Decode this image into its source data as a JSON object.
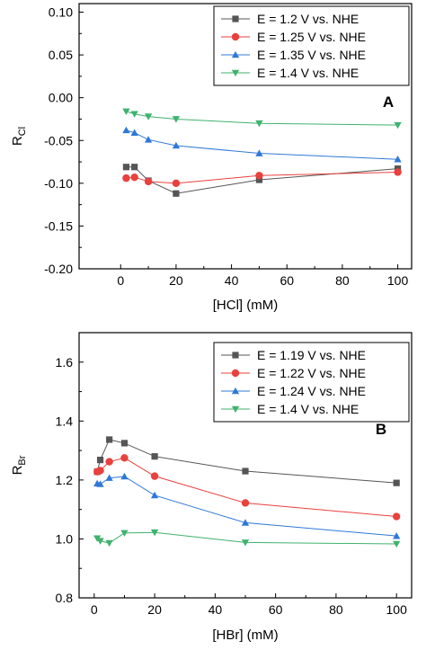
{
  "chart_data": [
    {
      "type": "line",
      "panel_label": "A",
      "xlabel": "[HCl] (mM)",
      "ylabel_main": "R",
      "ylabel_sub": "Cl",
      "xlim": [
        -15,
        105
      ],
      "ylim": [
        -0.2,
        0.11
      ],
      "xticks": [
        0,
        20,
        40,
        60,
        80,
        100
      ],
      "xtick_labels": [
        "0",
        "20",
        "40",
        "60",
        "80",
        "100"
      ],
      "yticks": [
        -0.2,
        -0.15,
        -0.1,
        -0.05,
        0.0,
        0.05,
        0.1
      ],
      "ytick_labels": [
        "-0.20",
        "-0.15",
        "-0.10",
        "-0.05",
        "0.00",
        "0.05",
        "0.10"
      ],
      "legend_position": "top-right",
      "series": [
        {
          "name": "E = 1.2 V vs. NHE",
          "color": "#555555",
          "marker": "square",
          "x": [
            2,
            5,
            10,
            20,
            50,
            100
          ],
          "y": [
            -0.081,
            -0.081,
            -0.097,
            -0.112,
            -0.096,
            -0.083
          ]
        },
        {
          "name": "E = 1.25 V vs. NHE",
          "color": "#e8413e",
          "marker": "circle",
          "x": [
            2,
            5,
            10,
            20,
            50,
            100
          ],
          "y": [
            -0.094,
            -0.093,
            -0.098,
            -0.1,
            -0.091,
            -0.087
          ]
        },
        {
          "name": "E = 1.35 V vs. NHE",
          "color": "#2f78d8",
          "marker": "triangle-up",
          "x": [
            2,
            5,
            10,
            20,
            50,
            100
          ],
          "y": [
            -0.038,
            -0.041,
            -0.049,
            -0.056,
            -0.065,
            -0.072
          ]
        },
        {
          "name": "E = 1.4 V vs. NHE",
          "color": "#3fb26e",
          "marker": "triangle-down",
          "x": [
            2,
            5,
            10,
            20,
            50,
            100
          ],
          "y": [
            -0.016,
            -0.019,
            -0.022,
            -0.025,
            -0.03,
            -0.032
          ]
        }
      ]
    },
    {
      "type": "line",
      "panel_label": "B",
      "xlabel": "[HBr] (mM)",
      "ylabel_main": "R",
      "ylabel_sub": "Br",
      "xlim": [
        -5,
        105
      ],
      "ylim": [
        0.8,
        1.7
      ],
      "xticks": [
        0,
        20,
        40,
        60,
        80,
        100
      ],
      "xtick_labels": [
        "0",
        "20",
        "40",
        "60",
        "80",
        "100"
      ],
      "yticks": [
        0.8,
        1.0,
        1.2,
        1.4,
        1.6
      ],
      "ytick_labels": [
        "0.8",
        "1.0",
        "1.2",
        "1.4",
        "1.6"
      ],
      "legend_position": "top-right",
      "series": [
        {
          "name": "E = 1.19 V vs. NHE",
          "color": "#555555",
          "marker": "square",
          "x": [
            1,
            2,
            5,
            10,
            20,
            50,
            100
          ],
          "y": [
            1.228,
            1.268,
            1.337,
            1.325,
            1.28,
            1.23,
            1.19
          ]
        },
        {
          "name": "E = 1.22 V vs. NHE",
          "color": "#e8413e",
          "marker": "circle",
          "x": [
            1,
            2,
            5,
            10,
            20,
            50,
            100
          ],
          "y": [
            1.228,
            1.232,
            1.262,
            1.275,
            1.213,
            1.122,
            1.076
          ]
        },
        {
          "name": "E = 1.24 V vs. NHE",
          "color": "#2f78d8",
          "marker": "triangle-up",
          "x": [
            1,
            2,
            5,
            10,
            20,
            50,
            100
          ],
          "y": [
            1.188,
            1.186,
            1.207,
            1.212,
            1.148,
            1.055,
            1.01
          ]
        },
        {
          "name": "E = 1.4 V vs. NHE",
          "color": "#3fb26e",
          "marker": "triangle-down",
          "x": [
            1,
            2,
            5,
            10,
            20,
            50,
            100
          ],
          "y": [
            1.002,
            0.993,
            0.986,
            1.02,
            1.022,
            0.988,
            0.983
          ]
        }
      ]
    }
  ]
}
